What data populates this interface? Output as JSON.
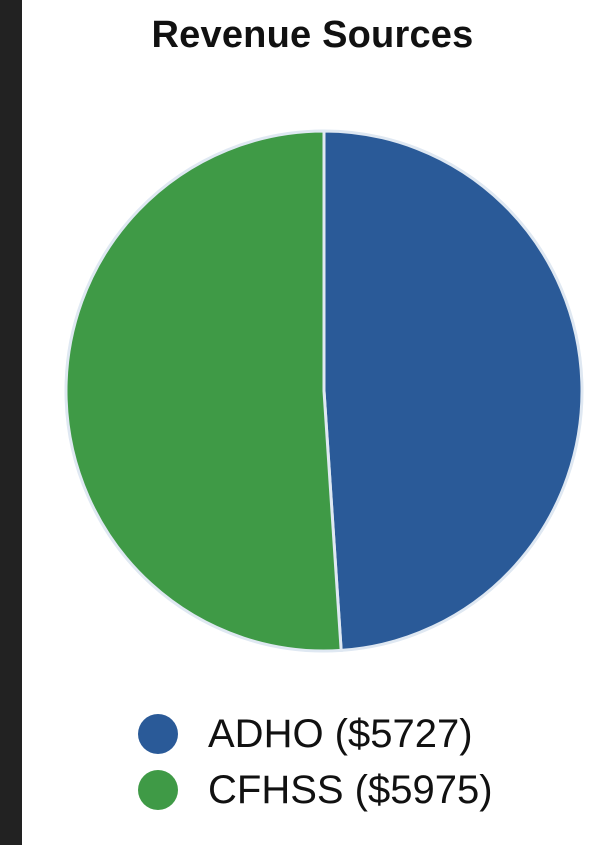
{
  "chart_data": {
    "type": "pie",
    "title": "Revenue Sources",
    "slices": [
      {
        "label": "ADHO ($5727)",
        "name": "ADHO",
        "value": 5727,
        "color": "#2a5a98"
      },
      {
        "label": "CFHSS ($5975)",
        "name": "CFHSS",
        "value": 5975,
        "color": "#3f9a46"
      }
    ],
    "start_angle_degrees": 0,
    "direction": "clockwise",
    "legend_position": "bottom"
  }
}
